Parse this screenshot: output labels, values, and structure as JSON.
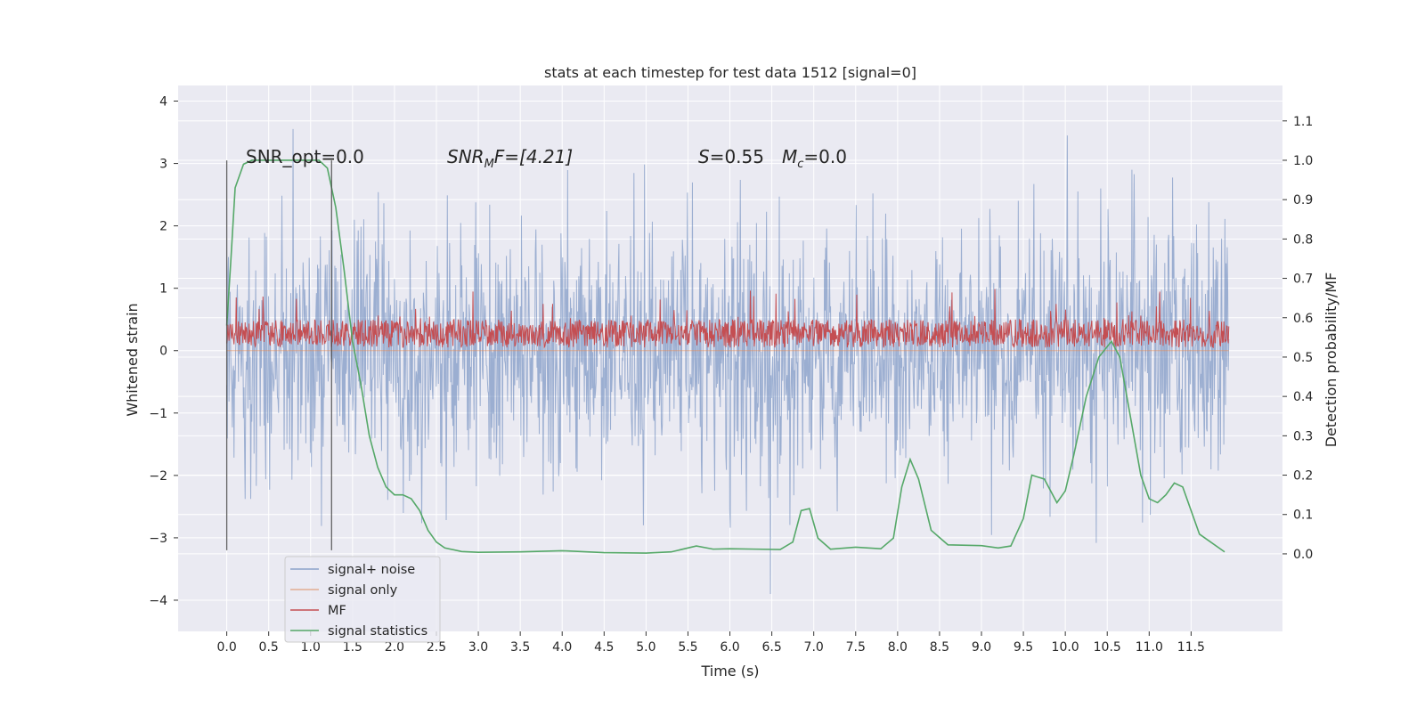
{
  "chart_data": {
    "type": "line",
    "title": "stats at each timestep for test data 1512 [signal=0]",
    "xlabel": "Time (s)",
    "ylabel_left": "Whitened strain",
    "ylabel_right": "Detection probability/MF",
    "xlim": [
      -0.58,
      12.59
    ],
    "ylim_left": [
      -4.5,
      4.25
    ],
    "ylim_right": [
      -0.197,
      1.19
    ],
    "x_ticks": [
      "0.0",
      "0.5",
      "1.0",
      "1.5",
      "2.0",
      "2.5",
      "3.0",
      "3.5",
      "4.0",
      "4.5",
      "5.0",
      "5.5",
      "6.0",
      "6.5",
      "7.0",
      "7.5",
      "8.0",
      "8.5",
      "9.0",
      "9.5",
      "10.0",
      "10.5",
      "11.0",
      "11.5"
    ],
    "y_ticks_left": [
      "4",
      "3",
      "2",
      "1",
      "0",
      "−1",
      "−2",
      "−3",
      "−4"
    ],
    "y_ticks_right": [
      "1.1",
      "1.0",
      "0.9",
      "0.8",
      "0.7",
      "0.6",
      "0.5",
      "0.4",
      "0.3",
      "0.2",
      "0.1",
      "0.0"
    ],
    "grid": true,
    "legend_placement": "lower-left",
    "annotations": {
      "snr_opt": "SNR_opt=0.0",
      "snr_mf_var": "SNR",
      "snr_mf_sub": "M",
      "snr_mf_rest": "F=[4.21]",
      "s_var": "S",
      "s_rest": "=0.55",
      "mc_var": "M",
      "mc_sub": "c",
      "mc_rest": "=0.0"
    },
    "vlines_x": [
      0.0,
      1.25
    ],
    "series": [
      {
        "name": "signal+ noise",
        "color": "#4c72b0",
        "kind": "noise",
        "t_range": [
          0.0,
          11.95
        ],
        "amplitude": 1.0
      },
      {
        "name": "signal only",
        "color": "#dd8452",
        "kind": "flat",
        "values_left": 0.0
      },
      {
        "name": "MF",
        "color": "#c44e52",
        "kind": "band",
        "t_range": [
          0.0,
          11.95
        ],
        "band_left": [
          0.05,
          0.5
        ]
      },
      {
        "name": "signal statistics",
        "color": "#55a868",
        "kind": "line",
        "t": [
          0.0,
          0.05,
          0.1,
          0.2,
          0.3,
          0.5,
          0.7,
          0.9,
          1.0,
          1.1,
          1.2,
          1.3,
          1.4,
          1.5,
          1.6,
          1.7,
          1.8,
          1.9,
          2.0,
          2.1,
          2.2,
          2.3,
          2.4,
          2.5,
          2.6,
          2.8,
          3.0,
          3.5,
          4.0,
          4.5,
          5.0,
          5.3,
          5.6,
          5.8,
          6.0,
          6.3,
          6.6,
          6.75,
          6.85,
          6.95,
          7.05,
          7.2,
          7.5,
          7.8,
          7.95,
          8.05,
          8.15,
          8.25,
          8.4,
          8.6,
          9.0,
          9.2,
          9.35,
          9.5,
          9.6,
          9.75,
          9.9,
          10.0,
          10.1,
          10.25,
          10.4,
          10.55,
          10.65,
          10.8,
          10.9,
          11.0,
          11.1,
          11.2,
          11.3,
          11.4,
          11.6,
          11.9
        ],
        "y": [
          0.58,
          0.75,
          0.93,
          0.99,
          1.0,
          1.0,
          1.0,
          1.0,
          1.0,
          1.0,
          0.98,
          0.88,
          0.72,
          0.54,
          0.43,
          0.3,
          0.22,
          0.17,
          0.15,
          0.15,
          0.14,
          0.11,
          0.06,
          0.03,
          0.015,
          0.006,
          0.004,
          0.005,
          0.008,
          0.003,
          0.002,
          0.005,
          0.02,
          0.012,
          0.013,
          0.012,
          0.011,
          0.03,
          0.11,
          0.115,
          0.04,
          0.012,
          0.017,
          0.013,
          0.04,
          0.17,
          0.24,
          0.19,
          0.06,
          0.023,
          0.021,
          0.015,
          0.02,
          0.09,
          0.2,
          0.19,
          0.13,
          0.16,
          0.25,
          0.4,
          0.5,
          0.54,
          0.5,
          0.32,
          0.2,
          0.14,
          0.13,
          0.15,
          0.18,
          0.17,
          0.05,
          0.005
        ]
      }
    ]
  }
}
